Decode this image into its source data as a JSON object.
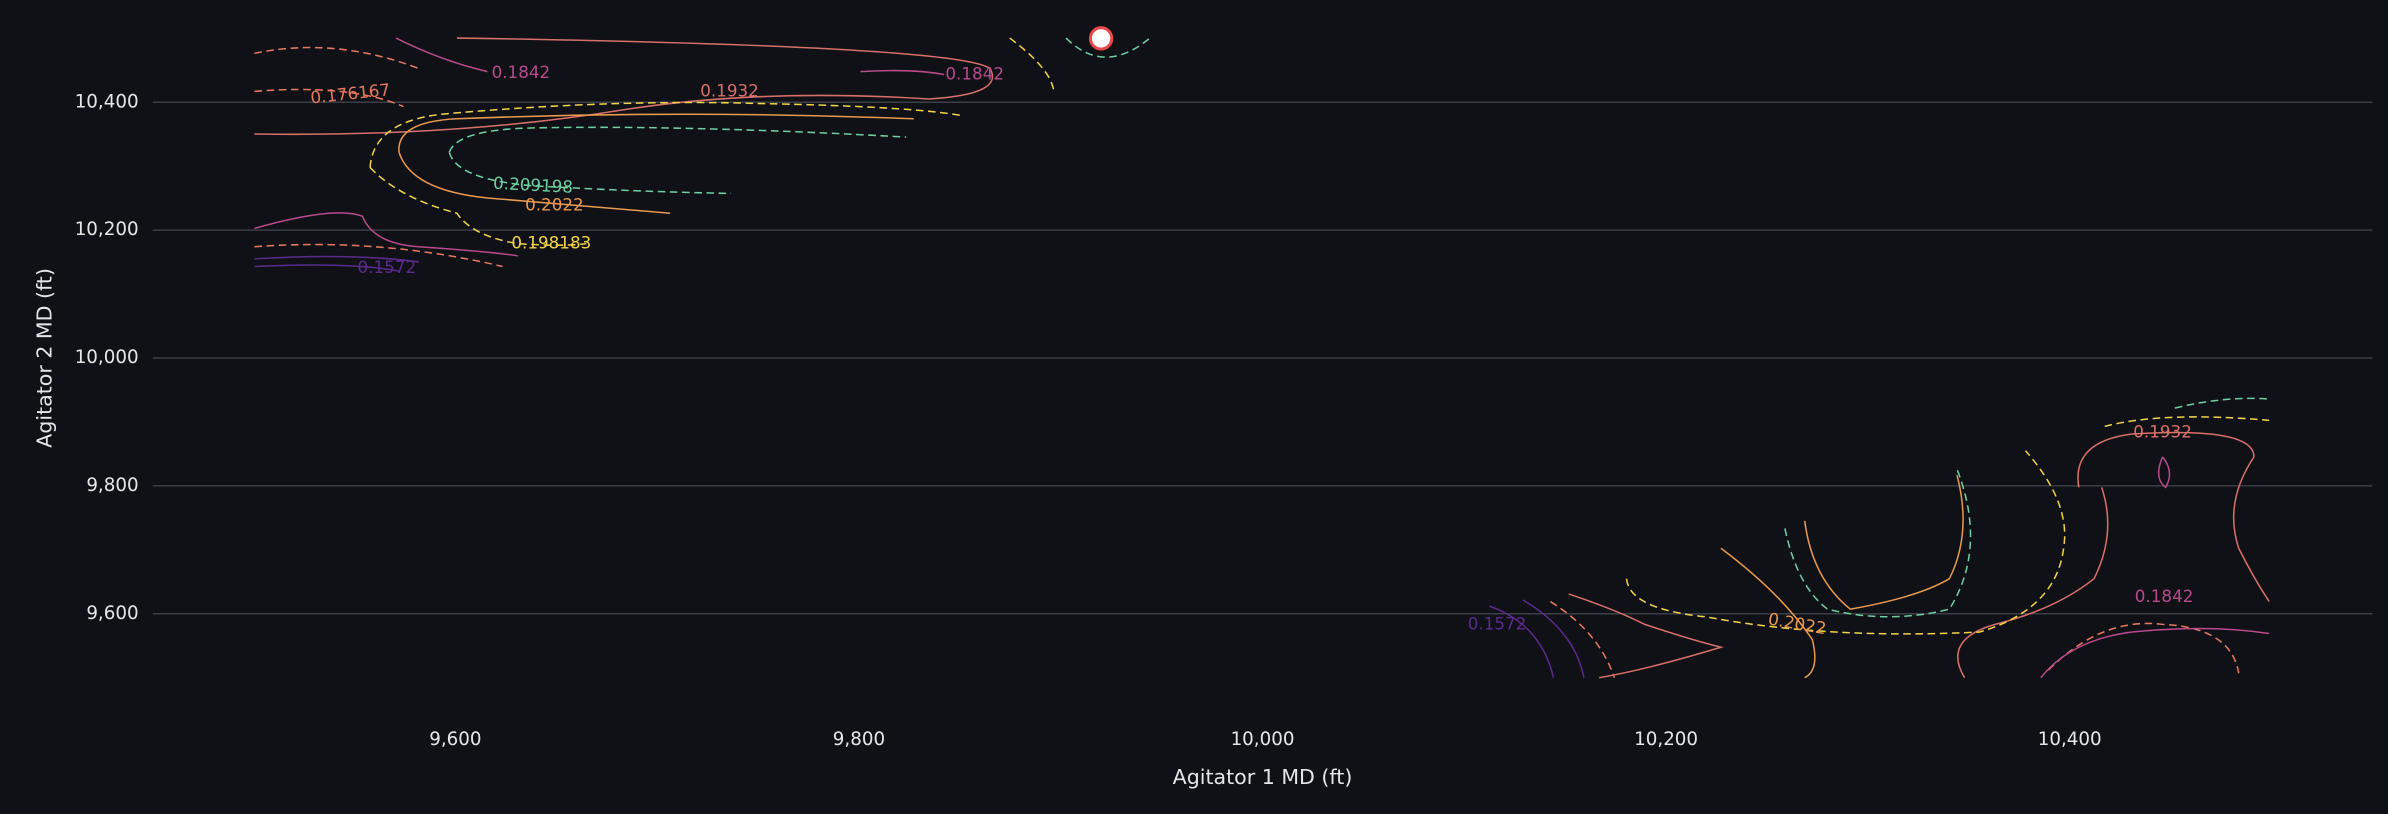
{
  "chart_data": {
    "type": "contour",
    "x_label": "Agitator 1 MD (ft)",
    "y_label": "Agitator 2 MD (ft)",
    "xlim": [
      9450,
      10550
    ],
    "ylim": [
      9450,
      10560
    ],
    "xticks": [
      {
        "value": 9600,
        "label": "9,600"
      },
      {
        "value": 9800,
        "label": "9,800"
      },
      {
        "value": 10000,
        "label": "10,000"
      },
      {
        "value": 10200,
        "label": "10,200"
      },
      {
        "value": 10400,
        "label": "10,400"
      }
    ],
    "yticks": [
      {
        "value": 9600,
        "label": "9,600"
      },
      {
        "value": 9800,
        "label": "9,800"
      },
      {
        "value": 10000,
        "label": "10,000"
      },
      {
        "value": 10200,
        "label": "10,200"
      },
      {
        "value": 10400,
        "label": "10,400"
      }
    ],
    "grid": "y",
    "contours": [
      {
        "level": 0.1572,
        "label": "0.1572",
        "color": "#5b2a8c",
        "dashed": false
      },
      {
        "level": 0.176167,
        "label": "0.176167",
        "color": "#e6785f",
        "dashed": true
      },
      {
        "level": 0.1842,
        "label": "0.1842",
        "color": "#b84a8c",
        "dashed": false
      },
      {
        "level": 0.1932,
        "label": "0.1932",
        "color": "#d8706a",
        "dashed": false
      },
      {
        "level": 0.198183,
        "label": "0.198183",
        "color": "#f2d24a",
        "dashed": true
      },
      {
        "level": 0.2022,
        "label": "0.2022",
        "color": "#e8984f",
        "dashed": false
      },
      {
        "level": 0.209198,
        "label": "0.209198",
        "color": "#6ecfa0",
        "dashed": true
      }
    ],
    "points": [
      {
        "x": 9920,
        "y": 10500,
        "color": "#e8484a"
      }
    ]
  }
}
